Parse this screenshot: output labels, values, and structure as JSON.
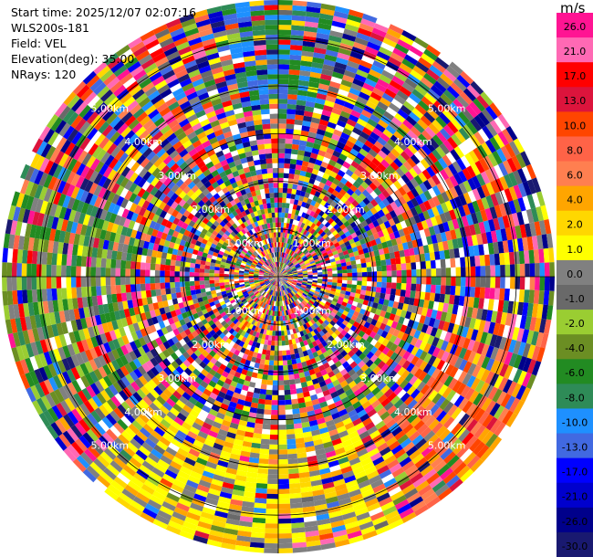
{
  "info": {
    "start_time": "Start time: 2025/12/07 02:07:16",
    "instrument": "WLS200s-181",
    "field": "Field: VEL",
    "elevation": "Elevation(deg): 35.00",
    "nrays": "NRays: 120"
  },
  "colorbar": {
    "unit": "m/s",
    "ticks": [
      "26.0",
      "21.0",
      "17.0",
      "13.0",
      "10.0",
      "8.0",
      "6.0",
      "4.0",
      "2.0",
      "1.0",
      "0.0",
      "-1.0",
      "-2.0",
      "-4.0",
      "-6.0",
      "-8.0",
      "-10.0",
      "-13.0",
      "-17.0",
      "-21.0",
      "-26.0",
      "-30.0"
    ],
    "colors": [
      "#ff1493",
      "#ff69b4",
      "#ff0000",
      "#dc143c",
      "#ff4500",
      "#ff6347",
      "#ff7f50",
      "#ffa500",
      "#ffd700",
      "#ffff00",
      "#808080",
      "#696969",
      "#9acd32",
      "#6b8e23",
      "#228b22",
      "#2e8b57",
      "#1e90ff",
      "#4169e1",
      "#0000ff",
      "#0000cd",
      "#00008b",
      "#191970"
    ]
  },
  "chart_data": {
    "type": "heatmap",
    "projection": "polar PPI",
    "field": "VEL",
    "n_rays": 120,
    "range_rings_km": [
      1.0,
      2.0,
      3.0,
      4.0,
      5.0
    ],
    "ring_labels": [
      "1.00km",
      "2.00km",
      "3.00km",
      "4.00km",
      "5.00km"
    ],
    "value_range": [
      -30.0,
      26.0
    ]
  }
}
